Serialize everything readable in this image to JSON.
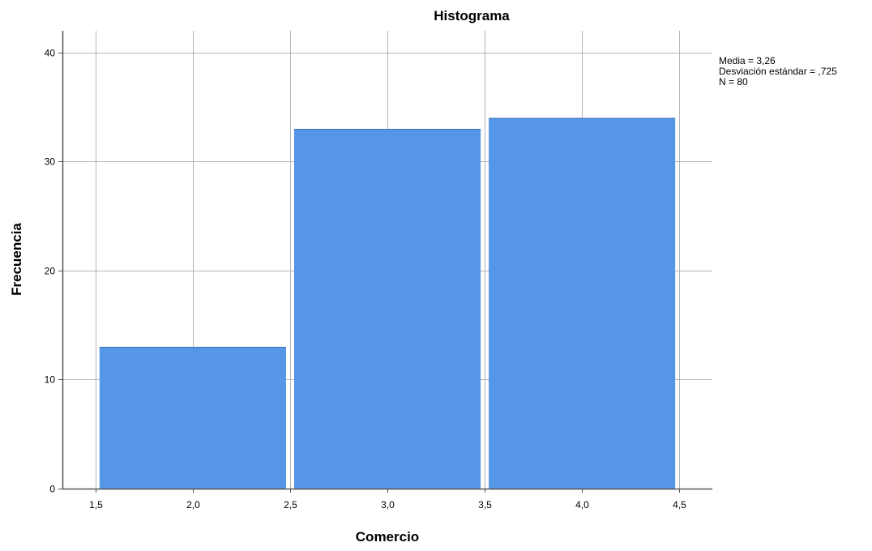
{
  "chart_data": {
    "type": "bar",
    "title": "Histograma",
    "xlabel": "Comercio",
    "ylabel": "Frecuencia",
    "bins": [
      {
        "start": 1.5,
        "end": 2.5,
        "value": 13
      },
      {
        "start": 2.5,
        "end": 3.5,
        "value": 33
      },
      {
        "start": 3.5,
        "end": 4.5,
        "value": 34
      }
    ],
    "x_ticks": [
      1.5,
      2.0,
      2.5,
      3.0,
      3.5,
      4.0,
      4.5
    ],
    "x_tick_labels": [
      "1,5",
      "2,0",
      "2,5",
      "3,0",
      "3,5",
      "4,0",
      "4,5"
    ],
    "y_ticks": [
      0,
      10,
      20,
      30,
      40
    ],
    "y_tick_labels": [
      "0",
      "10",
      "20",
      "30",
      "40"
    ],
    "xlim": [
      1.33,
      4.67
    ],
    "ylim": [
      0,
      42
    ],
    "grid": true,
    "bar_color": "#5596e6",
    "stats": [
      "Media = 3,26",
      "Desviación estándar = ,725",
      "N = 80"
    ]
  }
}
